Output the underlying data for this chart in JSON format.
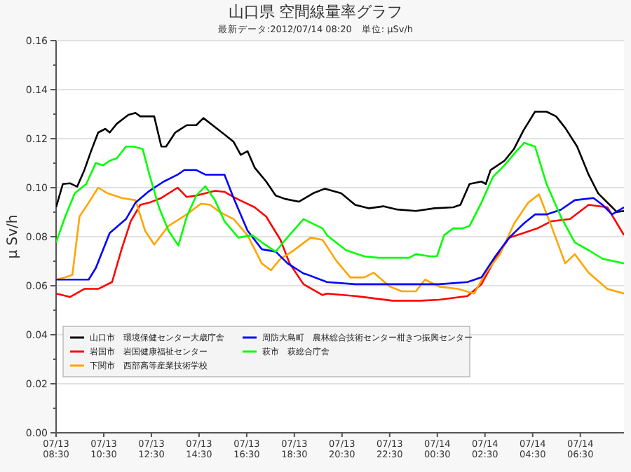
{
  "chart_data": {
    "type": "line",
    "title": "山口県 空間線量率グラフ",
    "subtitle": "最新データ:2012/07/14 08:20　単位: μSv/h",
    "ylabel": "μ Sv/h",
    "xlim": [
      "2012-07-13T08:30",
      "2012-07-14T08:20"
    ],
    "xticks": [
      {
        "value": "2012-07-13T08:30",
        "label": "07/13\n08:30"
      },
      {
        "value": "2012-07-13T10:30",
        "label": "07/13\n10:30"
      },
      {
        "value": "2012-07-13T12:30",
        "label": "07/13\n12:30"
      },
      {
        "value": "2012-07-13T14:30",
        "label": "07/13\n14:30"
      },
      {
        "value": "2012-07-13T16:30",
        "label": "07/13\n16:30"
      },
      {
        "value": "2012-07-13T18:30",
        "label": "07/13\n18:30"
      },
      {
        "value": "2012-07-13T20:30",
        "label": "07/13\n20:30"
      },
      {
        "value": "2012-07-13T22:30",
        "label": "07/13\n22:30"
      },
      {
        "value": "2012-07-14T00:30",
        "label": "07/14\n00:30"
      },
      {
        "value": "2012-07-14T02:30",
        "label": "07/14\n02:30"
      },
      {
        "value": "2012-07-14T04:30",
        "label": "07/14\n04:30"
      },
      {
        "value": "2012-07-14T06:30",
        "label": "07/14\n06:30"
      }
    ],
    "ylim": [
      0,
      0.16
    ],
    "yticks": [
      {
        "value": 0,
        "label": "0.00"
      },
      {
        "value": 0.01,
        "label": null
      },
      {
        "value": 0.02,
        "label": "0.02"
      },
      {
        "value": 0.03,
        "label": null
      },
      {
        "value": 0.04,
        "label": "0.04"
      },
      {
        "value": 0.05,
        "label": null
      },
      {
        "value": 0.06,
        "label": "0.06"
      },
      {
        "value": 0.07,
        "label": null
      },
      {
        "value": 0.08,
        "label": "0.08"
      },
      {
        "value": 0.09,
        "label": null
      },
      {
        "value": 0.1,
        "label": "0.10"
      },
      {
        "value": 0.11,
        "label": null
      },
      {
        "value": 0.12,
        "label": "0.12"
      },
      {
        "value": 0.13,
        "label": null
      },
      {
        "value": 0.14,
        "label": "0.14"
      },
      {
        "value": 0.15,
        "label": null
      },
      {
        "value": 0.16,
        "label": "0.16"
      }
    ],
    "grid": "y",
    "legend": "bottom left",
    "marker": "none",
    "line_style": "solid",
    "series": [
      {
        "name": "山口市　環境保健センター大歳庁舎",
        "color": "#000000",
        "x": [
          "2012-07-13T08:30",
          "2012-07-13T08:47",
          "2012-07-13T09:05",
          "2012-07-13T09:23",
          "2012-07-13T09:41",
          "2012-07-13T09:58",
          "2012-07-13T10:16",
          "2012-07-13T10:34",
          "2012-07-13T10:45",
          "2012-07-13T11:03",
          "2012-07-13T11:32",
          "2012-07-13T11:50",
          "2012-07-13T12:02",
          "2012-07-13T12:37",
          "2012-07-13T12:55",
          "2012-07-13T13:07",
          "2012-07-13T13:30",
          "2012-07-13T13:59",
          "2012-07-13T14:23",
          "2012-07-13T14:41",
          "2012-07-13T15:04",
          "2012-07-13T15:34",
          "2012-07-13T15:57",
          "2012-07-13T16:15",
          "2012-07-13T16:32",
          "2012-07-13T16:50",
          "2012-07-13T17:19",
          "2012-07-13T17:43",
          "2012-07-13T18:07",
          "2012-07-13T18:42",
          "2012-07-13T19:17",
          "2012-07-13T19:47",
          "2012-07-13T20:28",
          "2012-07-13T21:03",
          "2012-07-13T21:38",
          "2012-07-13T22:14",
          "2012-07-13T22:49",
          "2012-07-13T23:36",
          "2012-07-14T00:23",
          "2012-07-14T01:10",
          "2012-07-14T01:28",
          "2012-07-14T01:51",
          "2012-07-14T02:21",
          "2012-07-14T02:32",
          "2012-07-14T02:44",
          "2012-07-14T03:19",
          "2012-07-14T03:43",
          "2012-07-14T04:07",
          "2012-07-14T04:36",
          "2012-07-14T05:05",
          "2012-07-14T05:29",
          "2012-07-14T05:52",
          "2012-07-14T06:22",
          "2012-07-14T06:51",
          "2012-07-14T07:15",
          "2012-07-14T07:44",
          "2012-07-14T08:02",
          "2012-07-14T08:20"
        ],
        "values": [
          0.092,
          0.1015,
          0.1018,
          0.1004,
          0.1071,
          0.1149,
          0.1225,
          0.124,
          0.1225,
          0.1261,
          0.1297,
          0.1305,
          0.1291,
          0.1291,
          0.1168,
          0.1168,
          0.1225,
          0.1255,
          0.1255,
          0.1284,
          0.1255,
          0.1217,
          0.1187,
          0.1134,
          0.1149,
          0.1082,
          0.1025,
          0.0968,
          0.0954,
          0.0943,
          0.0977,
          0.0996,
          0.0977,
          0.093,
          0.0916,
          0.0924,
          0.0911,
          0.0905,
          0.0916,
          0.092,
          0.093,
          0.1015,
          0.1025,
          0.1015,
          0.1072,
          0.111,
          0.1158,
          0.1234,
          0.131,
          0.131,
          0.1291,
          0.1244,
          0.1168,
          0.1053,
          0.0977,
          0.093,
          0.0901,
          0.0905
        ]
      },
      {
        "name": "岩国市　岩国健康福祉センター",
        "color": "#ff0000",
        "x": [
          "2012-07-13T08:30",
          "2012-07-13T09:05",
          "2012-07-13T09:41",
          "2012-07-13T10:16",
          "2012-07-13T10:51",
          "2012-07-13T11:15",
          "2012-07-13T11:38",
          "2012-07-13T12:02",
          "2012-07-13T12:25",
          "2012-07-13T12:55",
          "2012-07-13T13:36",
          "2012-07-13T13:59",
          "2012-07-13T14:23",
          "2012-07-13T14:46",
          "2012-07-13T15:10",
          "2012-07-13T15:34",
          "2012-07-13T15:57",
          "2012-07-13T16:20",
          "2012-07-13T16:50",
          "2012-07-13T17:19",
          "2012-07-13T17:55",
          "2012-07-13T18:18",
          "2012-07-13T18:53",
          "2012-07-13T19:41",
          "2012-07-13T19:52",
          "2012-07-13T21:03",
          "2012-07-13T22:37",
          "2012-07-13T23:48",
          "2012-07-14T00:35",
          "2012-07-14T01:46",
          "2012-07-14T02:21",
          "2012-07-14T02:56",
          "2012-07-14T03:31",
          "2012-07-14T04:07",
          "2012-07-14T04:42",
          "2012-07-14T05:17",
          "2012-07-14T06:04",
          "2012-07-14T06:51",
          "2012-07-14T07:38",
          "2012-07-14T08:20"
        ],
        "values": [
          0.0568,
          0.0554,
          0.0587,
          0.0587,
          0.0615,
          0.0749,
          0.0863,
          0.093,
          0.0939,
          0.0958,
          0.1,
          0.0962,
          0.0968,
          0.0977,
          0.0987,
          0.0983,
          0.0962,
          0.0943,
          0.092,
          0.0882,
          0.0787,
          0.0691,
          0.0606,
          0.0562,
          0.0568,
          0.0558,
          0.0539,
          0.0539,
          0.0543,
          0.0558,
          0.0606,
          0.071,
          0.0796,
          0.0815,
          0.0834,
          0.0863,
          0.0872,
          0.093,
          0.092,
          0.0806
        ]
      },
      {
        "name": "下関市　西部高等産業技術学校",
        "color": "#ffa500",
        "x": [
          "2012-07-13T08:30",
          "2012-07-13T08:53",
          "2012-07-13T09:11",
          "2012-07-13T09:29",
          "2012-07-13T09:52",
          "2012-07-13T10:16",
          "2012-07-13T10:40",
          "2012-07-13T11:15",
          "2012-07-13T11:50",
          "2012-07-13T12:14",
          "2012-07-13T12:37",
          "2012-07-13T13:13",
          "2012-07-13T13:59",
          "2012-07-13T14:35",
          "2012-07-13T14:58",
          "2012-07-13T15:22",
          "2012-07-13T15:57",
          "2012-07-13T16:32",
          "2012-07-13T17:08",
          "2012-07-13T17:31",
          "2012-07-13T17:55",
          "2012-07-13T18:24",
          "2012-07-13T19:11",
          "2012-07-13T19:41",
          "2012-07-13T20:16",
          "2012-07-13T20:51",
          "2012-07-13T21:26",
          "2012-07-13T21:50",
          "2012-07-13T22:31",
          "2012-07-13T23:01",
          "2012-07-13T23:36",
          "2012-07-13T23:59",
          "2012-07-14T00:35",
          "2012-07-14T01:22",
          "2012-07-14T02:03",
          "2012-07-14T02:32",
          "2012-07-14T03:08",
          "2012-07-14T03:43",
          "2012-07-14T04:19",
          "2012-07-14T04:46",
          "2012-07-14T05:17",
          "2012-07-14T05:52",
          "2012-07-14T06:16",
          "2012-07-14T06:51",
          "2012-07-14T07:38",
          "2012-07-14T08:20"
        ],
        "values": [
          0.0625,
          0.0634,
          0.0644,
          0.0882,
          0.0939,
          0.1,
          0.0977,
          0.0958,
          0.0949,
          0.0825,
          0.0768,
          0.0844,
          0.0891,
          0.0935,
          0.093,
          0.0901,
          0.0872,
          0.0806,
          0.0691,
          0.0663,
          0.071,
          0.0739,
          0.0796,
          0.0787,
          0.0701,
          0.0634,
          0.0634,
          0.0653,
          0.0596,
          0.0577,
          0.0577,
          0.0625,
          0.0596,
          0.0587,
          0.0568,
          0.0653,
          0.0729,
          0.0853,
          0.0939,
          0.0973,
          0.0844,
          0.0691,
          0.0729,
          0.0653,
          0.0587,
          0.0568
        ]
      },
      {
        "name": "周防大島町　農林総合技術センター柑きつ振興センター",
        "color": "#0000ff",
        "x": [
          "2012-07-13T08:30",
          "2012-07-13T09:52",
          "2012-07-13T10:10",
          "2012-07-13T10:45",
          "2012-07-13T11:26",
          "2012-07-13T11:50",
          "2012-07-13T12:25",
          "2012-07-13T13:01",
          "2012-07-13T13:36",
          "2012-07-13T13:53",
          "2012-07-13T14:23",
          "2012-07-13T14:46",
          "2012-07-13T15:34",
          "2012-07-13T15:57",
          "2012-07-13T16:32",
          "2012-07-13T17:08",
          "2012-07-13T17:43",
          "2012-07-13T18:13",
          "2012-07-13T18:53",
          "2012-07-13T19:05",
          "2012-07-13T19:52",
          "2012-07-13T21:03",
          "2012-07-13T23:01",
          "2012-07-14T00:35",
          "2012-07-14T01:46",
          "2012-07-14T02:21",
          "2012-07-14T02:56",
          "2012-07-14T03:31",
          "2012-07-14T04:07",
          "2012-07-14T04:36",
          "2012-07-14T05:05",
          "2012-07-14T05:41",
          "2012-07-14T06:16",
          "2012-07-14T07:03",
          "2012-07-14T07:26",
          "2012-07-14T07:50",
          "2012-07-14T08:20"
        ],
        "values": [
          0.0625,
          0.0625,
          0.0672,
          0.0815,
          0.0872,
          0.0939,
          0.0987,
          0.1025,
          0.1053,
          0.1072,
          0.1072,
          0.1053,
          0.1053,
          0.0958,
          0.0825,
          0.0749,
          0.0739,
          0.0691,
          0.065,
          0.0644,
          0.0615,
          0.0606,
          0.0606,
          0.0606,
          0.0615,
          0.0634,
          0.072,
          0.0796,
          0.0853,
          0.0891,
          0.0891,
          0.091,
          0.0949,
          0.0958,
          0.093,
          0.0891,
          0.092
        ]
      },
      {
        "name": "萩市　萩総合庁舎",
        "color": "#00ff00",
        "x": [
          "2012-07-13T08:30",
          "2012-07-13T08:53",
          "2012-07-13T09:17",
          "2012-07-13T09:46",
          "2012-07-13T10:10",
          "2012-07-13T10:28",
          "2012-07-13T10:45",
          "2012-07-13T11:03",
          "2012-07-13T11:26",
          "2012-07-13T11:44",
          "2012-07-13T12:08",
          "2012-07-13T12:25",
          "2012-07-13T12:49",
          "2012-07-13T13:13",
          "2012-07-13T13:38",
          "2012-07-13T13:59",
          "2012-07-13T14:23",
          "2012-07-13T14:46",
          "2012-07-13T15:10",
          "2012-07-13T15:34",
          "2012-07-13T16:09",
          "2012-07-13T16:44",
          "2012-07-13T17:08",
          "2012-07-13T17:43",
          "2012-07-13T18:07",
          "2012-07-13T18:53",
          "2012-07-13T19:41",
          "2012-07-13T19:52",
          "2012-07-13T20:40",
          "2012-07-13T21:26",
          "2012-07-13T22:02",
          "2012-07-13T23:19",
          "2012-07-13T23:36",
          "2012-07-14T00:11",
          "2012-07-14T00:29",
          "2012-07-14T00:47",
          "2012-07-14T01:10",
          "2012-07-14T01:34",
          "2012-07-14T01:51",
          "2012-07-14T02:21",
          "2012-07-14T02:50",
          "2012-07-14T03:19",
          "2012-07-14T03:49",
          "2012-07-14T04:09",
          "2012-07-14T04:36",
          "2012-07-14T05:05",
          "2012-07-14T05:41",
          "2012-07-14T06:16",
          "2012-07-14T06:51",
          "2012-07-14T07:26",
          "2012-07-14T08:20"
        ],
        "values": [
          0.0777,
          0.0882,
          0.0977,
          0.1015,
          0.1101,
          0.1091,
          0.111,
          0.112,
          0.1168,
          0.1168,
          0.1158,
          0.1053,
          0.092,
          0.0825,
          0.0764,
          0.0882,
          0.0968,
          0.1006,
          0.0949,
          0.0863,
          0.0796,
          0.0806,
          0.0777,
          0.0739,
          0.0787,
          0.0872,
          0.0834,
          0.0806,
          0.0745,
          0.072,
          0.0714,
          0.0714,
          0.0729,
          0.072,
          0.072,
          0.0806,
          0.0834,
          0.0834,
          0.0844,
          0.0939,
          0.1044,
          0.1091,
          0.1149,
          0.1183,
          0.1168,
          0.1015,
          0.0882,
          0.0777,
          0.0745,
          0.071,
          0.0691
        ]
      }
    ]
  }
}
